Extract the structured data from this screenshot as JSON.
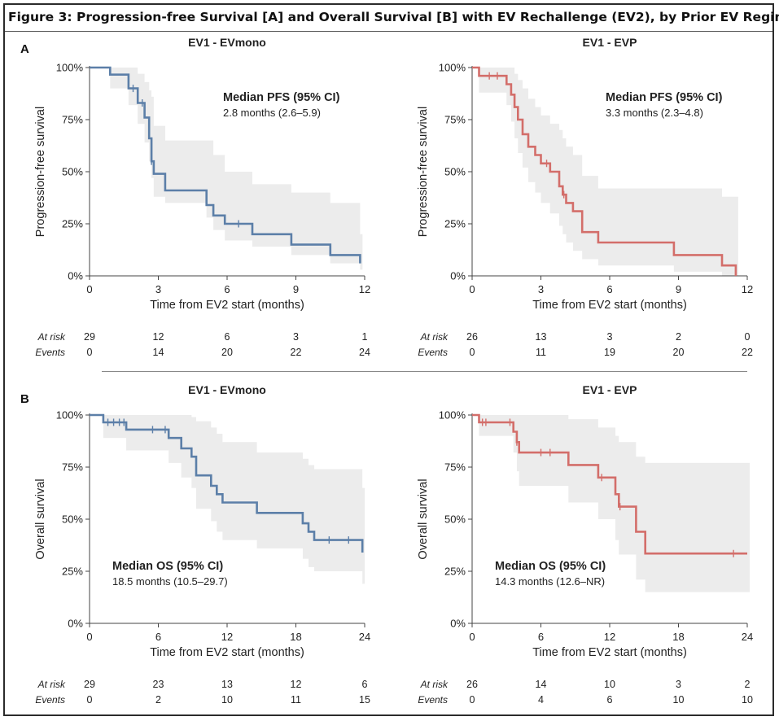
{
  "figure": {
    "title": "Figure 3: Progression-free Survival [A] and Overall Survival [B] with EV Rechallenge (EV2), by Prior EV Regimen",
    "panel_a_letter": "A",
    "panel_b_letter": "B"
  },
  "colors": {
    "mono": "#5c7fa8",
    "evp": "#d36e6a",
    "ci_band": "#ececec",
    "axis": "#444444"
  },
  "chart_data": [
    {
      "id": "pfs-mono",
      "type": "line",
      "subtype": "kaplan-meier step",
      "title": "EV1 - EVmono",
      "xlabel": "Time from EV2 start (months)",
      "ylabel": "Progression-free survival",
      "xlim": [
        0,
        12
      ],
      "ylim": [
        0,
        1
      ],
      "xticks": [
        0,
        3,
        6,
        9,
        12
      ],
      "yticks": [
        "0%",
        "25%",
        "50%",
        "75%",
        "100%"
      ],
      "median_heading": "Median PFS (95% CI)",
      "median_value": "2.8 months (2.6–5.9)",
      "series": [
        {
          "color_key": "mono",
          "x": [
            0,
            0.9,
            0.9,
            1.7,
            1.7,
            2.1,
            2.1,
            2.4,
            2.4,
            2.6,
            2.6,
            2.7,
            2.7,
            2.8,
            2.8,
            3.3,
            3.3,
            5.1,
            5.1,
            5.4,
            5.4,
            5.9,
            5.9,
            7.1,
            7.1,
            8.8,
            8.8,
            10.5,
            10.5,
            11.8,
            11.8
          ],
          "y": [
            1,
            1,
            0.966,
            0.966,
            0.9,
            0.9,
            0.83,
            0.83,
            0.76,
            0.76,
            0.66,
            0.66,
            0.55,
            0.55,
            0.49,
            0.49,
            0.41,
            0.41,
            0.34,
            0.34,
            0.29,
            0.29,
            0.25,
            0.25,
            0.2,
            0.2,
            0.15,
            0.15,
            0.1,
            0.1,
            0.06
          ],
          "censor_x": [
            1.9,
            2.3,
            2.7,
            6.5
          ],
          "ci_x": [
            0,
            0.9,
            1.7,
            2.1,
            2.4,
            2.6,
            2.7,
            2.8,
            3.3,
            5.1,
            5.4,
            5.9,
            7.1,
            8.8,
            10.5,
            11.8
          ],
          "ci_lo": [
            1,
            0.9,
            0.82,
            0.73,
            0.64,
            0.55,
            0.47,
            0.38,
            0.35,
            0.28,
            0.22,
            0.17,
            0.14,
            0.1,
            0.06,
            0.03
          ],
          "ci_hi": [
            1,
            1,
            1,
            0.97,
            0.93,
            0.89,
            0.86,
            0.72,
            0.65,
            0.65,
            0.58,
            0.5,
            0.44,
            0.4,
            0.35,
            0.2
          ]
        }
      ],
      "at_risk": [
        29,
        12,
        6,
        3,
        1
      ],
      "events": [
        0,
        14,
        20,
        22,
        24
      ]
    },
    {
      "id": "pfs-evp",
      "type": "line",
      "subtype": "kaplan-meier step",
      "title": "EV1 - EVP",
      "xlabel": "Time from EV2 start (months)",
      "ylabel": "Progression-free survival",
      "xlim": [
        0,
        12
      ],
      "ylim": [
        0,
        1
      ],
      "xticks": [
        0,
        3,
        6,
        9,
        12
      ],
      "yticks": [
        "0%",
        "25%",
        "50%",
        "75%",
        "100%"
      ],
      "median_heading": "Median PFS (95% CI)",
      "median_value": "3.3 months (2.3–4.8)",
      "series": [
        {
          "color_key": "evp",
          "x": [
            0,
            0.3,
            0.3,
            1.5,
            1.5,
            1.7,
            1.7,
            1.85,
            1.85,
            2.0,
            2.0,
            2.2,
            2.2,
            2.45,
            2.45,
            2.75,
            2.75,
            3.0,
            3.0,
            3.4,
            3.4,
            3.8,
            3.8,
            3.95,
            3.95,
            4.1,
            4.1,
            4.4,
            4.4,
            4.8,
            4.8,
            5.5,
            5.5,
            8.8,
            8.8,
            10.9,
            10.9,
            11.5,
            11.5
          ],
          "y": [
            1,
            1,
            0.96,
            0.96,
            0.92,
            0.92,
            0.87,
            0.87,
            0.81,
            0.81,
            0.75,
            0.75,
            0.68,
            0.68,
            0.62,
            0.62,
            0.58,
            0.58,
            0.54,
            0.54,
            0.5,
            0.5,
            0.43,
            0.43,
            0.39,
            0.39,
            0.35,
            0.35,
            0.31,
            0.31,
            0.21,
            0.21,
            0.16,
            0.16,
            0.1,
            0.1,
            0.05,
            0.05,
            0.0
          ],
          "censor_x": [
            0.75,
            1.1,
            3.25,
            4.0
          ],
          "ci_x": [
            0,
            0.3,
            1.5,
            1.7,
            1.85,
            2.0,
            2.2,
            2.45,
            2.75,
            3.0,
            3.4,
            3.8,
            3.95,
            4.1,
            4.4,
            4.8,
            5.5,
            8.8,
            10.9,
            11.5
          ],
          "ci_lo": [
            1,
            0.88,
            0.82,
            0.74,
            0.66,
            0.59,
            0.52,
            0.45,
            0.4,
            0.35,
            0.3,
            0.24,
            0.2,
            0.16,
            0.12,
            0.08,
            0.05,
            0.02,
            0.0,
            0.0
          ],
          "ci_hi": [
            1,
            1,
            1,
            1,
            0.97,
            0.94,
            0.9,
            0.85,
            0.81,
            0.77,
            0.73,
            0.7,
            0.66,
            0.62,
            0.58,
            0.48,
            0.42,
            0.42,
            0.38,
            0.38
          ]
        }
      ],
      "at_risk": [
        26,
        13,
        3,
        2,
        0
      ],
      "events": [
        0,
        11,
        19,
        20,
        22
      ]
    },
    {
      "id": "os-mono",
      "type": "line",
      "subtype": "kaplan-meier step",
      "title": "EV1 - EVmono",
      "xlabel": "Time from EV2 start (months)",
      "ylabel": "Overall survival",
      "xlim": [
        0,
        24
      ],
      "ylim": [
        0,
        1
      ],
      "xticks": [
        0,
        6,
        12,
        18,
        24
      ],
      "yticks": [
        "0%",
        "25%",
        "50%",
        "75%",
        "100%"
      ],
      "median_heading": "Median OS (95% CI)",
      "median_value": "18.5 months (10.5–29.7)",
      "series": [
        {
          "color_key": "mono",
          "x": [
            0,
            1.2,
            1.2,
            3.2,
            3.2,
            6.9,
            6.9,
            8.0,
            8.0,
            8.9,
            8.9,
            9.3,
            9.3,
            10.6,
            10.6,
            11.1,
            11.1,
            11.6,
            11.6,
            14.6,
            14.6,
            18.6,
            18.6,
            19.1,
            19.1,
            19.6,
            19.6,
            23.8,
            23.8
          ],
          "y": [
            1,
            1,
            0.965,
            0.965,
            0.93,
            0.93,
            0.89,
            0.89,
            0.84,
            0.84,
            0.8,
            0.8,
            0.71,
            0.71,
            0.66,
            0.66,
            0.62,
            0.62,
            0.58,
            0.58,
            0.53,
            0.53,
            0.48,
            0.48,
            0.44,
            0.44,
            0.4,
            0.4,
            0.34
          ],
          "censor_x": [
            1.6,
            2.1,
            2.6,
            3.0,
            5.5,
            6.6,
            20.9,
            22.6
          ],
          "ci_x": [
            0,
            1.2,
            3.2,
            6.9,
            8.0,
            8.9,
            9.3,
            10.6,
            11.1,
            11.6,
            14.6,
            18.6,
            19.1,
            19.6,
            23.8
          ],
          "ci_lo": [
            1,
            0.89,
            0.83,
            0.77,
            0.7,
            0.65,
            0.55,
            0.49,
            0.44,
            0.4,
            0.36,
            0.31,
            0.27,
            0.25,
            0.19
          ],
          "ci_hi": [
            1,
            1,
            1,
            1,
            1,
            0.99,
            0.97,
            0.94,
            0.91,
            0.87,
            0.82,
            0.79,
            0.76,
            0.74,
            0.65
          ]
        }
      ],
      "at_risk": [
        29,
        23,
        13,
        12,
        6
      ],
      "events": [
        0,
        2,
        10,
        11,
        15
      ]
    },
    {
      "id": "os-evp",
      "type": "line",
      "subtype": "kaplan-meier step",
      "title": "EV1 - EVP",
      "xlabel": "Time from EV2 start (months)",
      "ylabel": "Overall survival",
      "xlim": [
        0,
        24
      ],
      "ylim": [
        0,
        1
      ],
      "xticks": [
        0,
        6,
        12,
        18,
        24
      ],
      "yticks": [
        "0%",
        "25%",
        "50%",
        "75%",
        "100%"
      ],
      "median_heading": "Median OS (95% CI)",
      "median_value": "14.3 months (12.6–NR)",
      "series": [
        {
          "color_key": "evp",
          "x": [
            0,
            0.6,
            0.6,
            3.6,
            3.6,
            3.9,
            3.9,
            4.1,
            4.1,
            8.4,
            8.4,
            11.0,
            11.0,
            12.5,
            12.5,
            12.8,
            12.8,
            14.3,
            14.3,
            15.1,
            15.1,
            24
          ],
          "y": [
            1,
            1,
            0.965,
            0.965,
            0.92,
            0.92,
            0.87,
            0.87,
            0.82,
            0.82,
            0.76,
            0.76,
            0.7,
            0.7,
            0.62,
            0.62,
            0.56,
            0.56,
            0.44,
            0.44,
            0.335,
            0.335
          ],
          "censor_x": [
            0.9,
            1.2,
            3.3,
            3.9,
            6.0,
            6.8,
            11.3,
            12.9,
            22.8
          ],
          "ci_x": [
            0,
            0.6,
            3.6,
            3.9,
            4.1,
            8.4,
            11.0,
            12.5,
            12.8,
            14.3,
            15.1,
            24
          ],
          "ci_lo": [
            1,
            0.9,
            0.82,
            0.73,
            0.66,
            0.58,
            0.5,
            0.4,
            0.33,
            0.21,
            0.15,
            0.15
          ],
          "ci_hi": [
            1,
            1,
            1,
            1,
            1,
            0.98,
            0.94,
            0.9,
            0.87,
            0.8,
            0.77,
            0.77
          ]
        }
      ],
      "at_risk": [
        26,
        14,
        10,
        3,
        2
      ],
      "events": [
        0,
        4,
        6,
        10,
        10
      ]
    }
  ],
  "risk_table": {
    "at_risk_label": "At risk",
    "events_label": "Events"
  }
}
